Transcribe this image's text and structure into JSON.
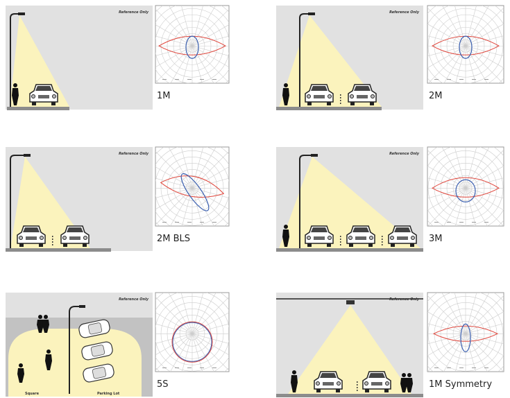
{
  "panels": [
    {
      "label": "1M",
      "note": "Reference Only"
    },
    {
      "label": "2M",
      "note": "Reference Only"
    },
    {
      "label": "2M BLS",
      "note": "Reference Only"
    },
    {
      "label": "3M",
      "note": "Reference Only"
    },
    {
      "label": "5S",
      "note": "Reference Only",
      "area_labels": [
        "Square",
        "Parking Lot"
      ]
    },
    {
      "label": "1M Symmetry",
      "note": "Reference Only"
    }
  ]
}
